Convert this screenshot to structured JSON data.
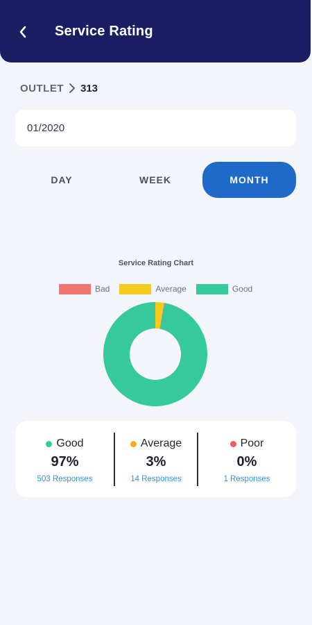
{
  "header": {
    "title": "Service Rating"
  },
  "breadcrumb": {
    "outlet_label": "OUTLET",
    "outlet_id": "313"
  },
  "date_field": {
    "value": "01/2020"
  },
  "tabs": [
    {
      "label": "DAY",
      "active": false
    },
    {
      "label": "WEEK",
      "active": false
    },
    {
      "label": "MONTH",
      "active": true
    }
  ],
  "colors": {
    "good": "#36c99a",
    "average": "#f5cb1d",
    "bad": "#f07470",
    "primary": "#1a1f63",
    "accent": "#1f6ac9"
  },
  "chart_data": {
    "type": "pie",
    "title": "Service Rating Chart",
    "legend": [
      "Bad",
      "Average",
      "Good"
    ],
    "legend_position": "top",
    "categories": [
      "Bad",
      "Average",
      "Good"
    ],
    "values": [
      1,
      14,
      503
    ]
  },
  "stats": [
    {
      "name": "Good",
      "percent": "97%",
      "responses": "503 Responses",
      "color": "#36c99a"
    },
    {
      "name": "Average",
      "percent": "3%",
      "responses": "14 Responses",
      "color": "#f5ab1d"
    },
    {
      "name": "Poor",
      "percent": "0%",
      "responses": "1 Responses",
      "color": "#ef5a63"
    }
  ]
}
